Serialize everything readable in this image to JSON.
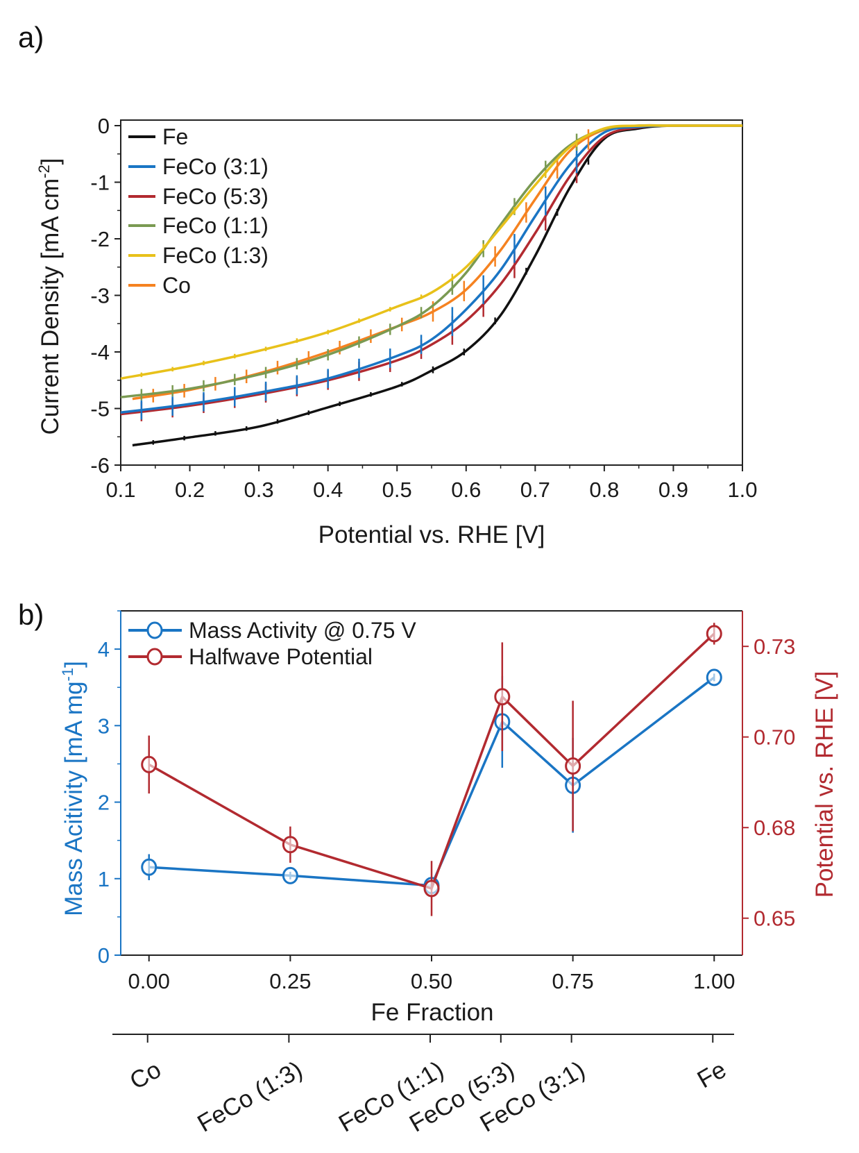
{
  "chart_data": [
    {
      "type": "line",
      "panel_label": "a)",
      "xlabel": "Potential vs. RHE [V]",
      "ylabel_main": "Current Density [mA cm",
      "ylabel_sup": "-2",
      "ylabel_end": "]",
      "xlim": [
        0.1,
        1.0
      ],
      "ylim": [
        -6,
        0
      ],
      "xticks": [
        0.1,
        0.2,
        0.3,
        0.4,
        0.5,
        0.6,
        0.7,
        0.8,
        0.9,
        1.0
      ],
      "xtick_labels": [
        "0.1",
        "0.2",
        "0.3",
        "0.4",
        "0.5",
        "0.6",
        "0.7",
        "0.8",
        "0.9",
        "1.0"
      ],
      "yticks": [
        0,
        -1,
        -2,
        -3,
        -4,
        -5,
        -6
      ],
      "ytick_labels": [
        "0",
        "-1",
        "-2",
        "-3",
        "-4",
        "-5",
        "-6"
      ],
      "legend_position": "top-left",
      "series": [
        {
          "name": "Fe",
          "color": "#111111",
          "err": 0.04,
          "x": [
            0.117,
            0.2,
            0.3,
            0.4,
            0.5,
            0.55,
            0.6,
            0.65,
            0.7,
            0.75,
            0.8,
            0.85,
            0.9,
            1.0
          ],
          "y": [
            -5.65,
            -5.51,
            -5.32,
            -4.98,
            -4.61,
            -4.33,
            -3.98,
            -3.35,
            -2.3,
            -1.1,
            -0.23,
            -0.05,
            0,
            0
          ]
        },
        {
          "name": "FeCo (3:1)",
          "color": "#1a75c4",
          "err": 0.17,
          "x": [
            0.1,
            0.2,
            0.3,
            0.4,
            0.5,
            0.55,
            0.6,
            0.65,
            0.7,
            0.75,
            0.8,
            0.85,
            0.9,
            1.0
          ],
          "y": [
            -5.07,
            -4.92,
            -4.72,
            -4.47,
            -4.07,
            -3.78,
            -3.25,
            -2.55,
            -1.6,
            -0.7,
            -0.12,
            -0.02,
            0,
            0
          ]
        },
        {
          "name": "FeCo (5:3)",
          "color": "#b22a30",
          "err": 0.17,
          "x": [
            0.1,
            0.2,
            0.3,
            0.4,
            0.5,
            0.55,
            0.6,
            0.65,
            0.7,
            0.75,
            0.8,
            0.85,
            0.9,
            1.0
          ],
          "y": [
            -5.1,
            -4.95,
            -4.75,
            -4.5,
            -4.15,
            -3.87,
            -3.45,
            -2.8,
            -1.9,
            -0.9,
            -0.2,
            -0.03,
            0,
            0
          ]
        },
        {
          "name": "FeCo (1:1)",
          "color": "#7a9a52",
          "err": 0.1,
          "x": [
            0.1,
            0.2,
            0.3,
            0.4,
            0.5,
            0.55,
            0.6,
            0.65,
            0.7,
            0.75,
            0.8,
            0.85,
            0.9,
            1.0
          ],
          "y": [
            -4.8,
            -4.65,
            -4.4,
            -4.05,
            -3.55,
            -3.2,
            -2.6,
            -1.75,
            -0.95,
            -0.35,
            -0.06,
            0,
            0,
            0
          ]
        },
        {
          "name": "FeCo (1:3)",
          "color": "#e8c11a",
          "err": 0.04,
          "x": [
            0.1,
            0.2,
            0.3,
            0.4,
            0.5,
            0.55,
            0.6,
            0.65,
            0.7,
            0.75,
            0.8,
            0.85,
            0.9,
            1.0
          ],
          "y": [
            -4.47,
            -4.25,
            -3.98,
            -3.65,
            -3.2,
            -2.95,
            -2.5,
            -1.8,
            -1.05,
            -0.38,
            -0.05,
            0,
            0,
            0
          ]
        },
        {
          "name": "Co",
          "color": "#f58220",
          "err": 0.12,
          "x": [
            0.117,
            0.2,
            0.3,
            0.4,
            0.5,
            0.55,
            0.6,
            0.65,
            0.7,
            0.75,
            0.8,
            0.85,
            0.9,
            1.0
          ],
          "y": [
            -4.83,
            -4.67,
            -4.38,
            -4.0,
            -3.55,
            -3.3,
            -2.9,
            -2.2,
            -1.3,
            -0.45,
            -0.07,
            0,
            0,
            0
          ]
        }
      ]
    },
    {
      "type": "line",
      "panel_label": "b)",
      "xlabel": "Fe Fraction",
      "xlim": [
        -0.05,
        1.05
      ],
      "xticks": [
        0,
        0.25,
        0.5,
        0.75,
        1.0
      ],
      "xtick_labels": [
        "0.00",
        "0.25",
        "0.50",
        "0.75",
        "1.00"
      ],
      "ylabel_left_main": "Mass Acitivity [mA mg",
      "ylabel_left_sup": "-1",
      "ylabel_left_end": "]",
      "ylim_left": [
        0,
        4.5
      ],
      "yticks_left": [
        0,
        1,
        2,
        3,
        4
      ],
      "ytick_labels_left": [
        "0",
        "1",
        "2",
        "3",
        "4"
      ],
      "ylabel_right": "Potential vs. RHE [V]",
      "ylim_right": [
        0.6398,
        0.7348
      ],
      "yticks_right": [
        0.65,
        0.675,
        0.7,
        0.725
      ],
      "ytick_labels_right": [
        "0.65",
        "0.68",
        "0.70",
        "0.73"
      ],
      "left_color": "#1a75c4",
      "right_color": "#b22a30",
      "legend_position": "top-left",
      "series": [
        {
          "name": "Mass Activity @ 0.75 V",
          "axis": "left",
          "color": "#1a75c4",
          "x": [
            0,
            0.25,
            0.5,
            0.625,
            0.75,
            1.0
          ],
          "y": [
            1.15,
            1.04,
            0.91,
            3.05,
            2.22,
            3.63
          ],
          "err": [
            0.17,
            0.05,
            0.06,
            0.6,
            0.62,
            0.05
          ]
        },
        {
          "name": "Halfwave Potential",
          "axis": "right",
          "color": "#b22a30",
          "x": [
            0,
            0.25,
            0.5,
            0.625,
            0.75,
            1.0
          ],
          "y": [
            0.6924,
            0.6703,
            0.6582,
            0.7111,
            0.692,
            0.7285
          ],
          "err": [
            0.008,
            0.005,
            0.0076,
            0.015,
            0.018,
            0.003
          ]
        }
      ],
      "secondary_axis": {
        "ticks": [
          0,
          0.25,
          0.5,
          0.625,
          0.75,
          1.0
        ],
        "labels": [
          "Co",
          "FeCo (1:3)",
          "FeCo (1:1)",
          "FeCo (5:3)",
          "FeCo (3:1)",
          "Fe"
        ]
      }
    }
  ]
}
